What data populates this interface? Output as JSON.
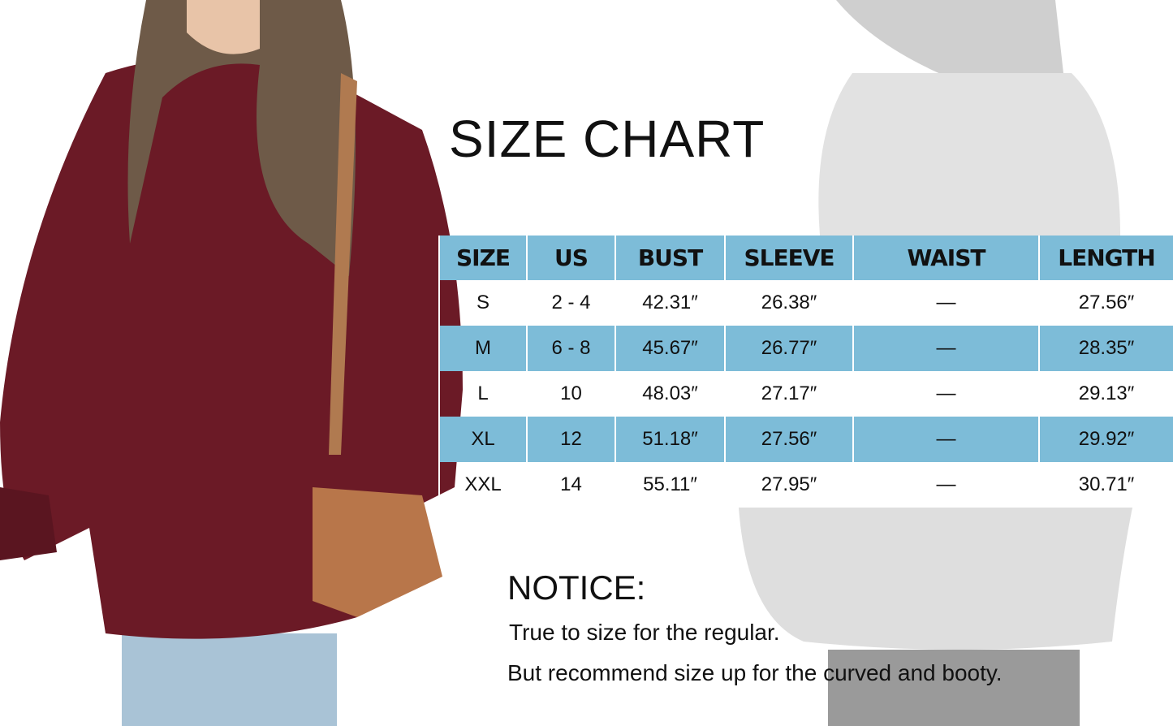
{
  "title": "SIZE CHART",
  "colors": {
    "table_accent": "#7dbcd8",
    "sweater_left": "#6b1a26",
    "sweater_right": "#d6d6d6"
  },
  "table": {
    "headers": [
      "SIZE",
      "US",
      "BUST",
      "SLEEVE",
      "WAIST",
      "LENGTH"
    ],
    "rows": [
      [
        "S",
        "2 - 4",
        "42.31″",
        "26.38″",
        "—",
        "27.56″"
      ],
      [
        "M",
        "6 - 8",
        "45.67″",
        "26.77″",
        "—",
        "28.35″"
      ],
      [
        "L",
        "10",
        "48.03″",
        "27.17″",
        "—",
        "29.13″"
      ],
      [
        "XL",
        "12",
        "51.18″",
        "27.56″",
        "—",
        "29.92″"
      ],
      [
        "XXL",
        "14",
        "55.11″",
        "27.95″",
        "—",
        "30.71″"
      ]
    ]
  },
  "notice": {
    "heading": "NOTICE:",
    "line1": "True to size for the regular.",
    "line2": "But recommend size up for the curved and booty."
  }
}
